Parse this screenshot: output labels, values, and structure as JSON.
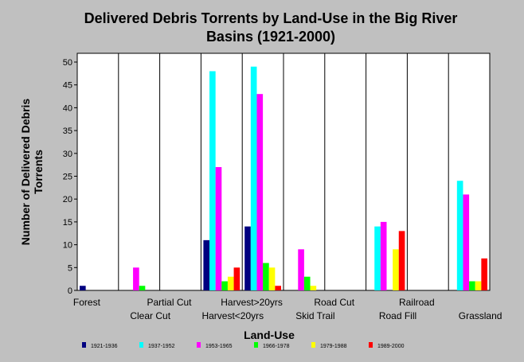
{
  "chart_data": {
    "type": "bar",
    "title_lines": [
      "Delivered Debris Torrents by Land-Use in the Big River",
      "Basins (1921-2000)"
    ],
    "xlabel": "Land-Use",
    "ylabel_lines": [
      "Number of Delivered Debris",
      "Torrents"
    ],
    "ylim": [
      0,
      50
    ],
    "yticks": [
      "0",
      "5",
      "10",
      "15",
      "20",
      "25",
      "30",
      "35",
      "40",
      "45",
      "50"
    ],
    "grid": "vertical category dividers",
    "legend_position": "bottom",
    "categories": [
      "Forest",
      "Clear Cut",
      "Partial Cut",
      "Harvest<20yrs",
      "Harvest>20yrs",
      "Skid Trail",
      "Road Cut",
      "Road Fill",
      "Railroad",
      "Grassland"
    ],
    "series": [
      {
        "name": "1921-1936",
        "color": "#000080",
        "values": [
          1,
          0,
          0,
          11,
          14,
          0,
          0,
          0,
          0,
          0
        ]
      },
      {
        "name": "1937-1952",
        "color": "#00ffff",
        "values": [
          0,
          0,
          0,
          48,
          49,
          0,
          0,
          14,
          0,
          24
        ]
      },
      {
        "name": "1953-1965",
        "color": "#ff00ff",
        "values": [
          0,
          5,
          0,
          27,
          43,
          9,
          0,
          15,
          0,
          21
        ]
      },
      {
        "name": "1966-1978",
        "color": "#00ff00",
        "values": [
          0,
          1,
          0,
          2,
          6,
          3,
          0,
          0,
          0,
          2
        ]
      },
      {
        "name": "1979-1988",
        "color": "#ffff00",
        "values": [
          0,
          0,
          0,
          3,
          5,
          1,
          0,
          9,
          0,
          2
        ]
      },
      {
        "name": "1989-2000",
        "color": "#ff0000",
        "values": [
          0,
          0,
          0,
          5,
          1,
          0,
          0,
          13,
          0,
          7
        ]
      }
    ]
  }
}
